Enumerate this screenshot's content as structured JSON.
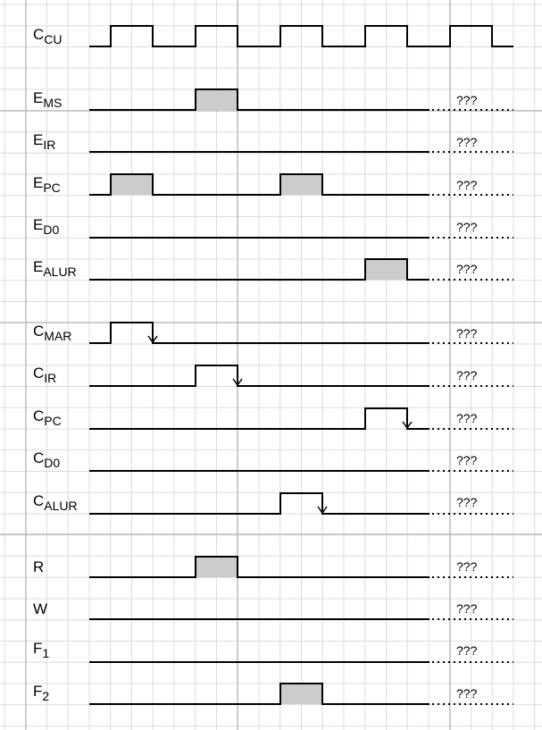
{
  "clock": {
    "main": "C",
    "sub": "CU"
  },
  "unknown_text": "???",
  "signals": [
    {
      "id": "ems",
      "main": "E",
      "sub": "MS",
      "shape": "fill",
      "periods": [
        2
      ]
    },
    {
      "id": "eir",
      "main": "E",
      "sub": "IR",
      "shape": "flat",
      "periods": []
    },
    {
      "id": "epc",
      "main": "E",
      "sub": "PC",
      "shape": "fill",
      "periods": [
        1,
        3
      ]
    },
    {
      "id": "ed0",
      "main": "E",
      "sub": "D0",
      "shape": "flat",
      "periods": []
    },
    {
      "id": "ealur",
      "main": "E",
      "sub": "ALUR",
      "shape": "fill",
      "periods": [
        4
      ]
    },
    {
      "id": "cmar",
      "main": "C",
      "sub": "MAR",
      "shape": "clock",
      "periods": [
        1
      ]
    },
    {
      "id": "cir",
      "main": "C",
      "sub": "IR",
      "shape": "clock",
      "periods": [
        2
      ]
    },
    {
      "id": "cpc",
      "main": "C",
      "sub": "PC",
      "shape": "clock",
      "periods": [
        4
      ]
    },
    {
      "id": "cd0",
      "main": "C",
      "sub": "D0",
      "shape": "flat",
      "periods": []
    },
    {
      "id": "calur",
      "main": "C",
      "sub": "ALUR",
      "shape": "clock",
      "periods": [
        3
      ]
    },
    {
      "id": "r",
      "main": "R",
      "sub": "",
      "shape": "fill",
      "periods": [
        2
      ]
    },
    {
      "id": "w",
      "main": "W",
      "sub": "",
      "shape": "flat",
      "periods": []
    },
    {
      "id": "f1",
      "main": "F",
      "sub": "1",
      "shape": "flat",
      "periods": []
    },
    {
      "id": "f2",
      "main": "F",
      "sub": "2",
      "shape": "fill",
      "periods": [
        3
      ]
    }
  ]
}
